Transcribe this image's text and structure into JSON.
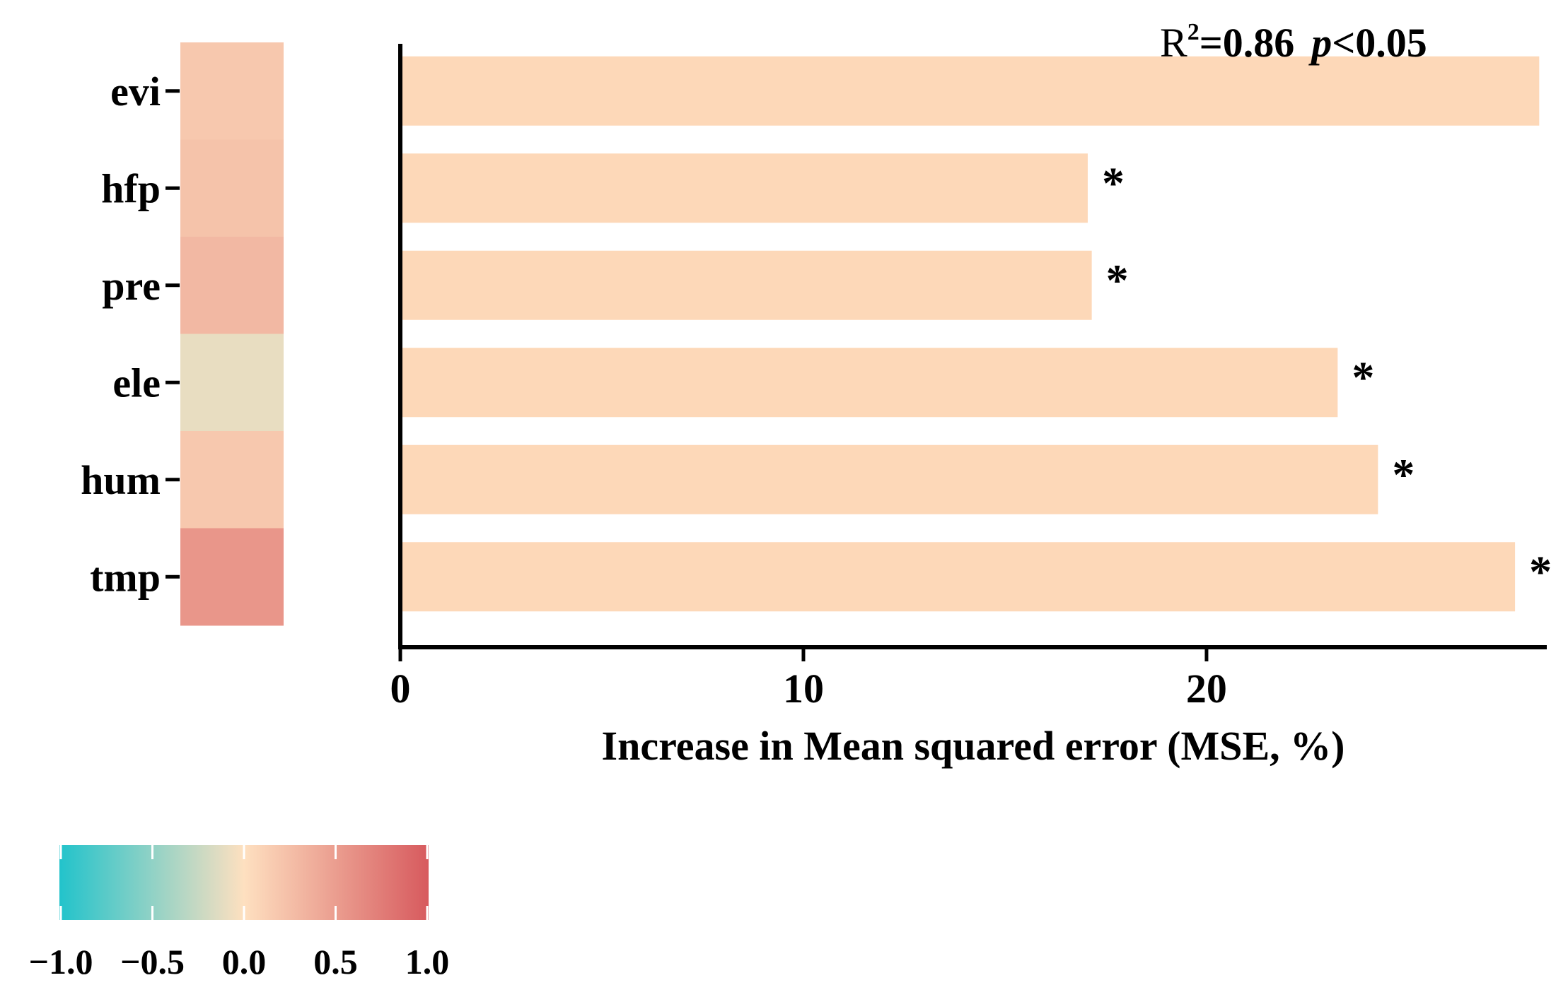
{
  "chart_data": {
    "type": "bar",
    "orientation": "horizontal",
    "categories": [
      "evi",
      "hfp",
      "pre",
      "ele",
      "hum",
      "tmp"
    ],
    "values": [
      28.2,
      17.0,
      17.1,
      23.2,
      24.2,
      27.6
    ],
    "significant": [
      false,
      true,
      true,
      true,
      true,
      true
    ],
    "significance_marker": "*",
    "correlation": [
      0.18,
      0.22,
      0.3,
      -0.1,
      0.18,
      0.55
    ],
    "xlabel": "Increase in Mean squared error (MSE, %)",
    "xlim": [
      0,
      28.3
    ],
    "xticks": [
      0,
      10,
      20
    ],
    "annotation": {
      "r_label": "R",
      "r_sup": "2",
      "r_value": "=0.86",
      "p_label": "p",
      "p_value": "<0.05"
    },
    "bar_color": "#FDD8B8",
    "colorbar": {
      "ticks": [
        "−1.0",
        "−0.5",
        "0.0",
        "0.5",
        "1.0"
      ],
      "range": [
        -1,
        1
      ],
      "colors": {
        "low": "#22C3CB",
        "mid": "#FEE0C0",
        "high": "#D75A5E"
      }
    },
    "grid": false,
    "legend": "bottom-left"
  }
}
